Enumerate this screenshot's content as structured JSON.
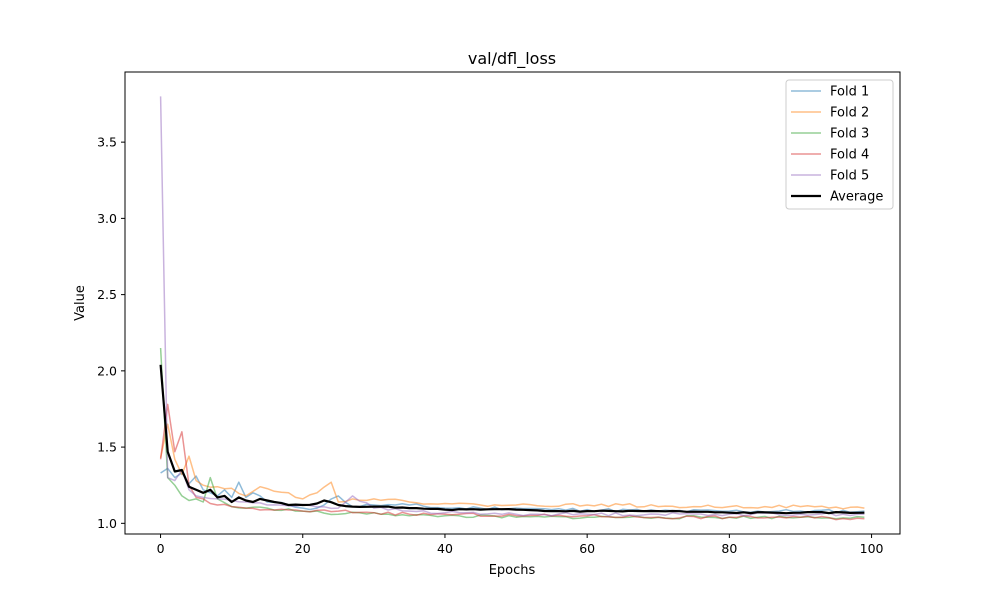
{
  "chart_data": {
    "type": "line",
    "title": "val/dfl_loss",
    "xlabel": "Epochs",
    "ylabel": "Value",
    "xlim": [
      -5,
      104
    ],
    "ylim": [
      0.93,
      3.96
    ],
    "xticks": [
      0,
      20,
      40,
      60,
      80,
      100
    ],
    "yticks": [
      1.0,
      1.5,
      2.0,
      2.5,
      3.0,
      3.5
    ],
    "ytick_labels": [
      "1.0",
      "1.5",
      "2.0",
      "2.5",
      "3.0",
      "3.5"
    ],
    "legend_position": "top-right",
    "series": [
      {
        "name": "Fold 1",
        "color": "#1f77b4",
        "alpha": 0.5,
        "width": 1.5,
        "key_x": [
          0,
          1,
          2,
          3,
          4,
          5,
          6,
          7,
          8,
          9,
          10,
          11,
          12,
          13,
          14,
          15,
          18,
          20,
          22,
          25,
          27,
          30,
          33,
          35,
          40,
          45,
          50,
          55,
          60,
          70,
          80,
          90,
          99
        ],
        "key_y": [
          1.33,
          1.36,
          1.3,
          1.33,
          1.26,
          1.31,
          1.22,
          1.2,
          1.18,
          1.22,
          1.17,
          1.27,
          1.17,
          1.2,
          1.18,
          1.14,
          1.12,
          1.1,
          1.1,
          1.18,
          1.11,
          1.12,
          1.12,
          1.12,
          1.1,
          1.1,
          1.1,
          1.09,
          1.09,
          1.08,
          1.08,
          1.08,
          1.08
        ],
        "noise": 0.012,
        "seed": 11
      },
      {
        "name": "Fold 2",
        "color": "#ff7f0e",
        "alpha": 0.5,
        "width": 1.5,
        "key_x": [
          0,
          1,
          2,
          3,
          4,
          5,
          6,
          8,
          10,
          12,
          14,
          16,
          18,
          20,
          22,
          24,
          25,
          27,
          30,
          35,
          40,
          45,
          50,
          60,
          65,
          70,
          75,
          80,
          85,
          90,
          99
        ],
        "key_y": [
          1.43,
          1.65,
          1.42,
          1.32,
          1.44,
          1.28,
          1.25,
          1.24,
          1.23,
          1.18,
          1.24,
          1.21,
          1.2,
          1.16,
          1.2,
          1.27,
          1.14,
          1.16,
          1.16,
          1.14,
          1.13,
          1.12,
          1.12,
          1.12,
          1.12,
          1.11,
          1.11,
          1.11,
          1.11,
          1.11,
          1.1
        ],
        "noise": 0.01,
        "seed": 22
      },
      {
        "name": "Fold 3",
        "color": "#2ca02c",
        "alpha": 0.5,
        "width": 1.5,
        "key_x": [
          0,
          1,
          2,
          3,
          4,
          5,
          6,
          7,
          8,
          10,
          12,
          15,
          20,
          25,
          30,
          35,
          40,
          50,
          60,
          70,
          80,
          90,
          99
        ],
        "key_y": [
          2.15,
          1.3,
          1.25,
          1.18,
          1.15,
          1.16,
          1.14,
          1.3,
          1.16,
          1.11,
          1.1,
          1.1,
          1.08,
          1.06,
          1.07,
          1.05,
          1.05,
          1.04,
          1.04,
          1.04,
          1.04,
          1.04,
          1.04
        ],
        "noise": 0.01,
        "seed": 33
      },
      {
        "name": "Fold 4",
        "color": "#d62728",
        "alpha": 0.5,
        "width": 1.5,
        "key_x": [
          0,
          1,
          2,
          3,
          4,
          5,
          6,
          7,
          8,
          10,
          12,
          15,
          20,
          25,
          30,
          35,
          40,
          50,
          60,
          70,
          80,
          90,
          99
        ],
        "key_y": [
          1.42,
          1.78,
          1.47,
          1.6,
          1.25,
          1.17,
          1.16,
          1.13,
          1.12,
          1.11,
          1.1,
          1.09,
          1.08,
          1.08,
          1.07,
          1.06,
          1.06,
          1.05,
          1.05,
          1.04,
          1.04,
          1.04,
          1.03
        ],
        "noise": 0.01,
        "seed": 44
      },
      {
        "name": "Fold 5",
        "color": "#9467bd",
        "alpha": 0.5,
        "width": 1.5,
        "key_x": [
          0,
          1,
          2,
          3,
          4,
          5,
          6,
          8,
          10,
          12,
          15,
          20,
          25,
          27,
          30,
          35,
          40,
          50,
          60,
          70,
          80,
          90,
          99
        ],
        "key_y": [
          3.8,
          1.3,
          1.28,
          1.35,
          1.22,
          1.18,
          1.17,
          1.16,
          1.15,
          1.14,
          1.12,
          1.12,
          1.1,
          1.18,
          1.1,
          1.08,
          1.07,
          1.06,
          1.06,
          1.06,
          1.06,
          1.06,
          1.06
        ],
        "noise": 0.01,
        "seed": 55
      }
    ],
    "average": {
      "name": "Average",
      "color": "#000000",
      "width": 2.2,
      "key_x": [
        0,
        1,
        2,
        3,
        4,
        5,
        6,
        7,
        8,
        9,
        10,
        11,
        12,
        13,
        14,
        15,
        16,
        18,
        20,
        22,
        23,
        25,
        27,
        30,
        35,
        40,
        45,
        50,
        55,
        60,
        70,
        80,
        90,
        99
      ],
      "key_y": [
        2.04,
        1.47,
        1.34,
        1.35,
        1.24,
        1.22,
        1.2,
        1.22,
        1.17,
        1.18,
        1.14,
        1.17,
        1.15,
        1.14,
        1.16,
        1.15,
        1.14,
        1.12,
        1.12,
        1.13,
        1.15,
        1.12,
        1.11,
        1.11,
        1.1,
        1.09,
        1.09,
        1.09,
        1.08,
        1.08,
        1.08,
        1.07,
        1.07,
        1.07
      ],
      "noise": 0.004,
      "seed": 66
    }
  }
}
